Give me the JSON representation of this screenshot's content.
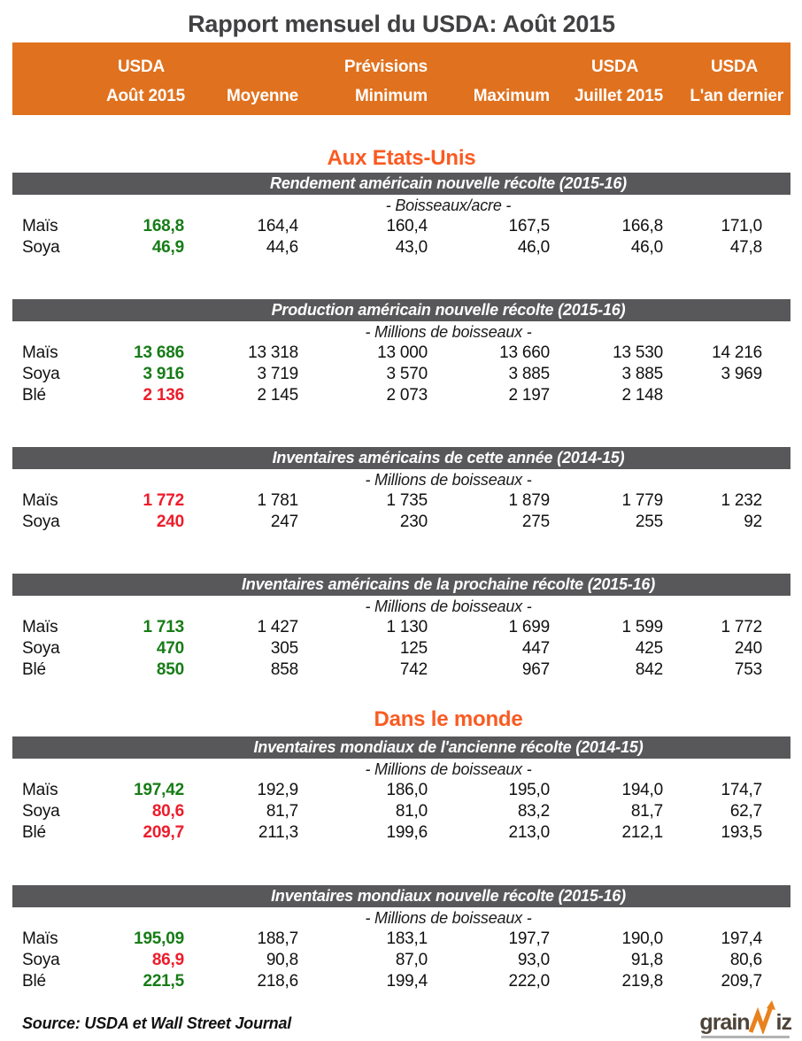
{
  "page": {
    "title": "Rapport mensuel du USDA: Août 2015"
  },
  "colors": {
    "band_orange": "#E0711E",
    "heading_orange": "#F95B22",
    "section_bar_gray": "#58585A",
    "positive_green": "#177C17",
    "negative_red": "#EE1C2B",
    "title_gray": "#414042"
  },
  "header": {
    "top": [
      "",
      "USDA",
      "",
      "Prévisions",
      "",
      "USDA",
      "USDA"
    ],
    "bottom": [
      "",
      "Août 2015",
      "Moyenne",
      "Minimum",
      "Maximum",
      "Juillet 2015",
      "L'an dernier"
    ]
  },
  "headings": {
    "us": "Aux Etats-Unis",
    "world": "Dans le monde"
  },
  "tables": [
    {
      "group": "us",
      "title": "Rendement américain nouvelle récolte (2015-16)",
      "unit": "- Boisseaux/acre -",
      "rows": [
        {
          "label": "Maïs",
          "color": "green",
          "values": [
            "168,8",
            "164,4",
            "160,4",
            "167,5",
            "166,8",
            "171,0"
          ]
        },
        {
          "label": "Soya",
          "color": "green",
          "values": [
            "46,9",
            "44,6",
            "43,0",
            "46,0",
            "46,0",
            "47,8"
          ]
        }
      ]
    },
    {
      "group": "us",
      "title": "Production américain nouvelle récolte (2015-16)",
      "unit": "- Millions de boisseaux -",
      "rows": [
        {
          "label": "Maïs",
          "color": "green",
          "values": [
            "13 686",
            "13 318",
            "13 000",
            "13 660",
            "13 530",
            "14 216"
          ]
        },
        {
          "label": "Soya",
          "color": "green",
          "values": [
            "3 916",
            "3 719",
            "3 570",
            "3 885",
            "3 885",
            "3 969"
          ]
        },
        {
          "label": "Blé",
          "color": "red",
          "values": [
            "2 136",
            "2 145",
            "2 073",
            "2 197",
            "2 148",
            ""
          ]
        }
      ]
    },
    {
      "group": "us",
      "title": "Inventaires américains de cette année (2014-15)",
      "unit": "- Millions de boisseaux -",
      "rows": [
        {
          "label": "Maïs",
          "color": "red",
          "values": [
            "1 772",
            "1 781",
            "1 735",
            "1 879",
            "1 779",
            "1 232"
          ]
        },
        {
          "label": "Soya",
          "color": "red",
          "values": [
            "240",
            "247",
            "230",
            "275",
            "255",
            "92"
          ]
        }
      ]
    },
    {
      "group": "us",
      "title": "Inventaires américains de la prochaine récolte (2015-16)",
      "unit": "- Millions de boisseaux -",
      "rows": [
        {
          "label": "Maïs",
          "color": "green",
          "values": [
            "1 713",
            "1 427",
            "1 130",
            "1 699",
            "1 599",
            "1 772"
          ]
        },
        {
          "label": "Soya",
          "color": "green",
          "values": [
            "470",
            "305",
            "125",
            "447",
            "425",
            "240"
          ]
        },
        {
          "label": "Blé",
          "color": "green",
          "values": [
            "850",
            "858",
            "742",
            "967",
            "842",
            "753"
          ]
        }
      ]
    },
    {
      "group": "world",
      "title": "Inventaires mondiaux de l'ancienne récolte (2014-15)",
      "unit": "- Millions de boisseaux -",
      "rows": [
        {
          "label": "Maïs",
          "color": "green",
          "values": [
            "197,42",
            "192,9",
            "186,0",
            "195,0",
            "194,0",
            "174,7"
          ]
        },
        {
          "label": "Soya",
          "color": "red",
          "values": [
            "80,6",
            "81,7",
            "81,0",
            "83,2",
            "81,7",
            "62,7"
          ]
        },
        {
          "label": "Blé",
          "color": "red",
          "values": [
            "209,7",
            "211,3",
            "199,6",
            "213,0",
            "212,1",
            "193,5"
          ]
        }
      ]
    },
    {
      "group": "world",
      "title": "Inventaires mondiaux nouvelle récolte (2015-16)",
      "unit": "- Millions de boisseaux -",
      "rows": [
        {
          "label": "Maïs",
          "color": "green",
          "values": [
            "195,09",
            "188,7",
            "183,1",
            "197,7",
            "190,0",
            "197,4"
          ]
        },
        {
          "label": "Soya",
          "color": "red",
          "values": [
            "86,9",
            "90,8",
            "87,0",
            "93,0",
            "91,8",
            "80,6"
          ]
        },
        {
          "label": "Blé",
          "color": "green",
          "values": [
            "221,5",
            "218,6",
            "199,4",
            "222,0",
            "219,8",
            "209,7"
          ]
        }
      ]
    }
  ],
  "footer": {
    "source": "Source: USDA et Wall Street Journal",
    "logo": {
      "text_left": "grain",
      "text_right": "iz",
      "arrow_icon": "zigzag-up-arrow",
      "orange": "#E8821E",
      "brown": "#4D4338"
    }
  }
}
